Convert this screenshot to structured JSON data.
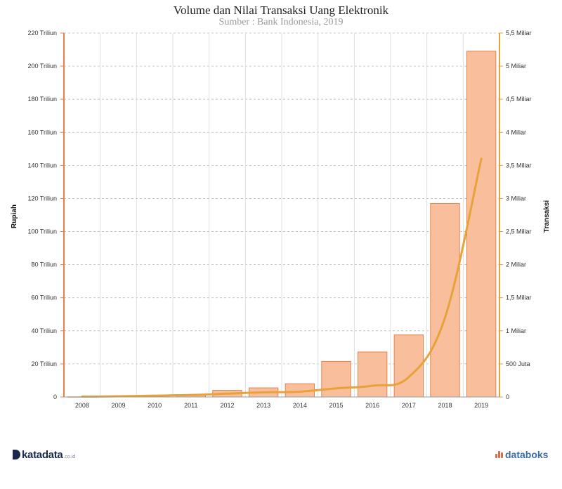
{
  "header": {
    "title": "Volume dan Nilai Transaksi Uang Elektronik",
    "subtitle": "Sumber : Bank Indonesia, 2019"
  },
  "footer": {
    "brand_left": "katadata",
    "brand_left_tld": ".co.id",
    "brand_right": "databoks"
  },
  "colors": {
    "bar_fill": "#f9be9c",
    "bar_stroke": "#e5834a",
    "line": "#e8a23a",
    "left_axis": "#e8804a",
    "right_axis": "#e8a23a",
    "grid": "#bbbbbb"
  },
  "chart_data": {
    "type": "bar",
    "categories": [
      "2008",
      "2009",
      "2010",
      "2011",
      "2012",
      "2013",
      "2014",
      "2015",
      "2016",
      "2017",
      "2018",
      "2019"
    ],
    "series": [
      {
        "type": "bar",
        "axis": "left",
        "values": [
          0.1,
          0.5,
          0.7,
          1.0,
          4.0,
          5.5,
          8.0,
          21.5,
          27.2,
          37.5,
          117,
          209
        ]
      },
      {
        "type": "line",
        "axis": "right",
        "values": [
          5000000,
          10000000,
          20000000,
          30000000,
          50000000,
          70000000,
          80000000,
          130000000,
          170000000,
          300000000,
          1200000000,
          3600000000
        ]
      }
    ],
    "ylabel": "Rupiah",
    "y2label": "Transaksi",
    "ylim": [
      0,
      220
    ],
    "y2lim": [
      0,
      5500000000
    ],
    "yticks": [
      {
        "v": 0,
        "label": "0"
      },
      {
        "v": 20,
        "label": "20 Triliun"
      },
      {
        "v": 40,
        "label": "40 Triliun"
      },
      {
        "v": 60,
        "label": "60 Triliun"
      },
      {
        "v": 80,
        "label": "80 Triliun"
      },
      {
        "v": 100,
        "label": "100 Triliun"
      },
      {
        "v": 120,
        "label": "120 Triliun"
      },
      {
        "v": 140,
        "label": "140 Triliun"
      },
      {
        "v": 160,
        "label": "160 Triliun"
      },
      {
        "v": 180,
        "label": "180 Triliun"
      },
      {
        "v": 200,
        "label": "200 Triliun"
      },
      {
        "v": 220,
        "label": "220 Triliun"
      }
    ],
    "y2ticks": [
      {
        "v": 0,
        "label": "0"
      },
      {
        "v": 500000000,
        "label": "500 Juta"
      },
      {
        "v": 1000000000,
        "label": "1 Miliar"
      },
      {
        "v": 1500000000,
        "label": "1,5 Miliar"
      },
      {
        "v": 2000000000,
        "label": "2 Miliar"
      },
      {
        "v": 2500000000,
        "label": "2,5 Miliar"
      },
      {
        "v": 3000000000,
        "label": "3 Miliar"
      },
      {
        "v": 3500000000,
        "label": "3,5 Miliar"
      },
      {
        "v": 4000000000,
        "label": "4 Miliar"
      },
      {
        "v": 4500000000,
        "label": "4,5 Miliar"
      },
      {
        "v": 5000000000,
        "label": "5 Miliar"
      },
      {
        "v": 5500000000,
        "label": "5,5 Miliar"
      }
    ],
    "grid": true,
    "legend": "none"
  }
}
